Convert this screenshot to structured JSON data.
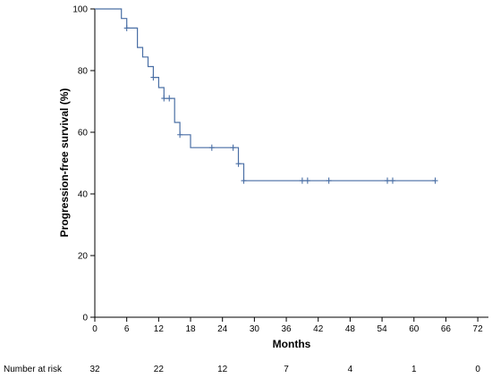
{
  "chart_data": {
    "type": "line",
    "xlabel": "Months",
    "ylabel": "Progression-free survival (%)",
    "xlim": [
      0,
      74
    ],
    "ylim": [
      0,
      100
    ],
    "x_ticks": [
      0,
      6,
      12,
      18,
      24,
      30,
      36,
      42,
      48,
      54,
      60,
      66,
      72
    ],
    "x_tick_labels": [
      "0",
      "6",
      "12",
      "18",
      "24",
      "30",
      "36",
      "42",
      "48",
      "54",
      "60",
      "66",
      "72"
    ],
    "y_ticks": [
      0,
      20,
      40,
      60,
      80,
      100
    ],
    "grid": false,
    "series_color": "#4a6fa5",
    "series": [
      {
        "step_points": [
          [
            0,
            100
          ],
          [
            5,
            100
          ],
          [
            5,
            96.9
          ],
          [
            6,
            96.9
          ],
          [
            6,
            93.8
          ],
          [
            8,
            93.8
          ],
          [
            8,
            87.5
          ],
          [
            9,
            87.5
          ],
          [
            9,
            84.4
          ],
          [
            10,
            84.4
          ],
          [
            10,
            81.3
          ],
          [
            11,
            81.3
          ],
          [
            11,
            77.8
          ],
          [
            12,
            77.8
          ],
          [
            12,
            74.5
          ],
          [
            13,
            74.5
          ],
          [
            13,
            71.0
          ],
          [
            15,
            71.0
          ],
          [
            15,
            63.2
          ],
          [
            16,
            63.2
          ],
          [
            16,
            59.2
          ],
          [
            18,
            59.2
          ],
          [
            18,
            55.0
          ],
          [
            27,
            55.0
          ],
          [
            27,
            49.8
          ],
          [
            28,
            49.8
          ],
          [
            28,
            44.3
          ],
          [
            64,
            44.3
          ]
        ],
        "censor_marks": [
          [
            6,
            93.8
          ],
          [
            11,
            77.8
          ],
          [
            13,
            71.0
          ],
          [
            14,
            71.0
          ],
          [
            16,
            59.2
          ],
          [
            22,
            55.0
          ],
          [
            26,
            55.0
          ],
          [
            27,
            49.8
          ],
          [
            28,
            44.3
          ],
          [
            39,
            44.3
          ],
          [
            40,
            44.3
          ],
          [
            44,
            44.3
          ],
          [
            55,
            44.3
          ],
          [
            56,
            44.3
          ],
          [
            64,
            44.3
          ]
        ]
      }
    ],
    "risk_table": {
      "label": "Number at risk",
      "times": [
        0,
        12,
        24,
        36,
        48,
        60,
        72
      ],
      "counts": [
        "32",
        "22",
        "12",
        "7",
        "4",
        "1",
        "0"
      ]
    }
  }
}
